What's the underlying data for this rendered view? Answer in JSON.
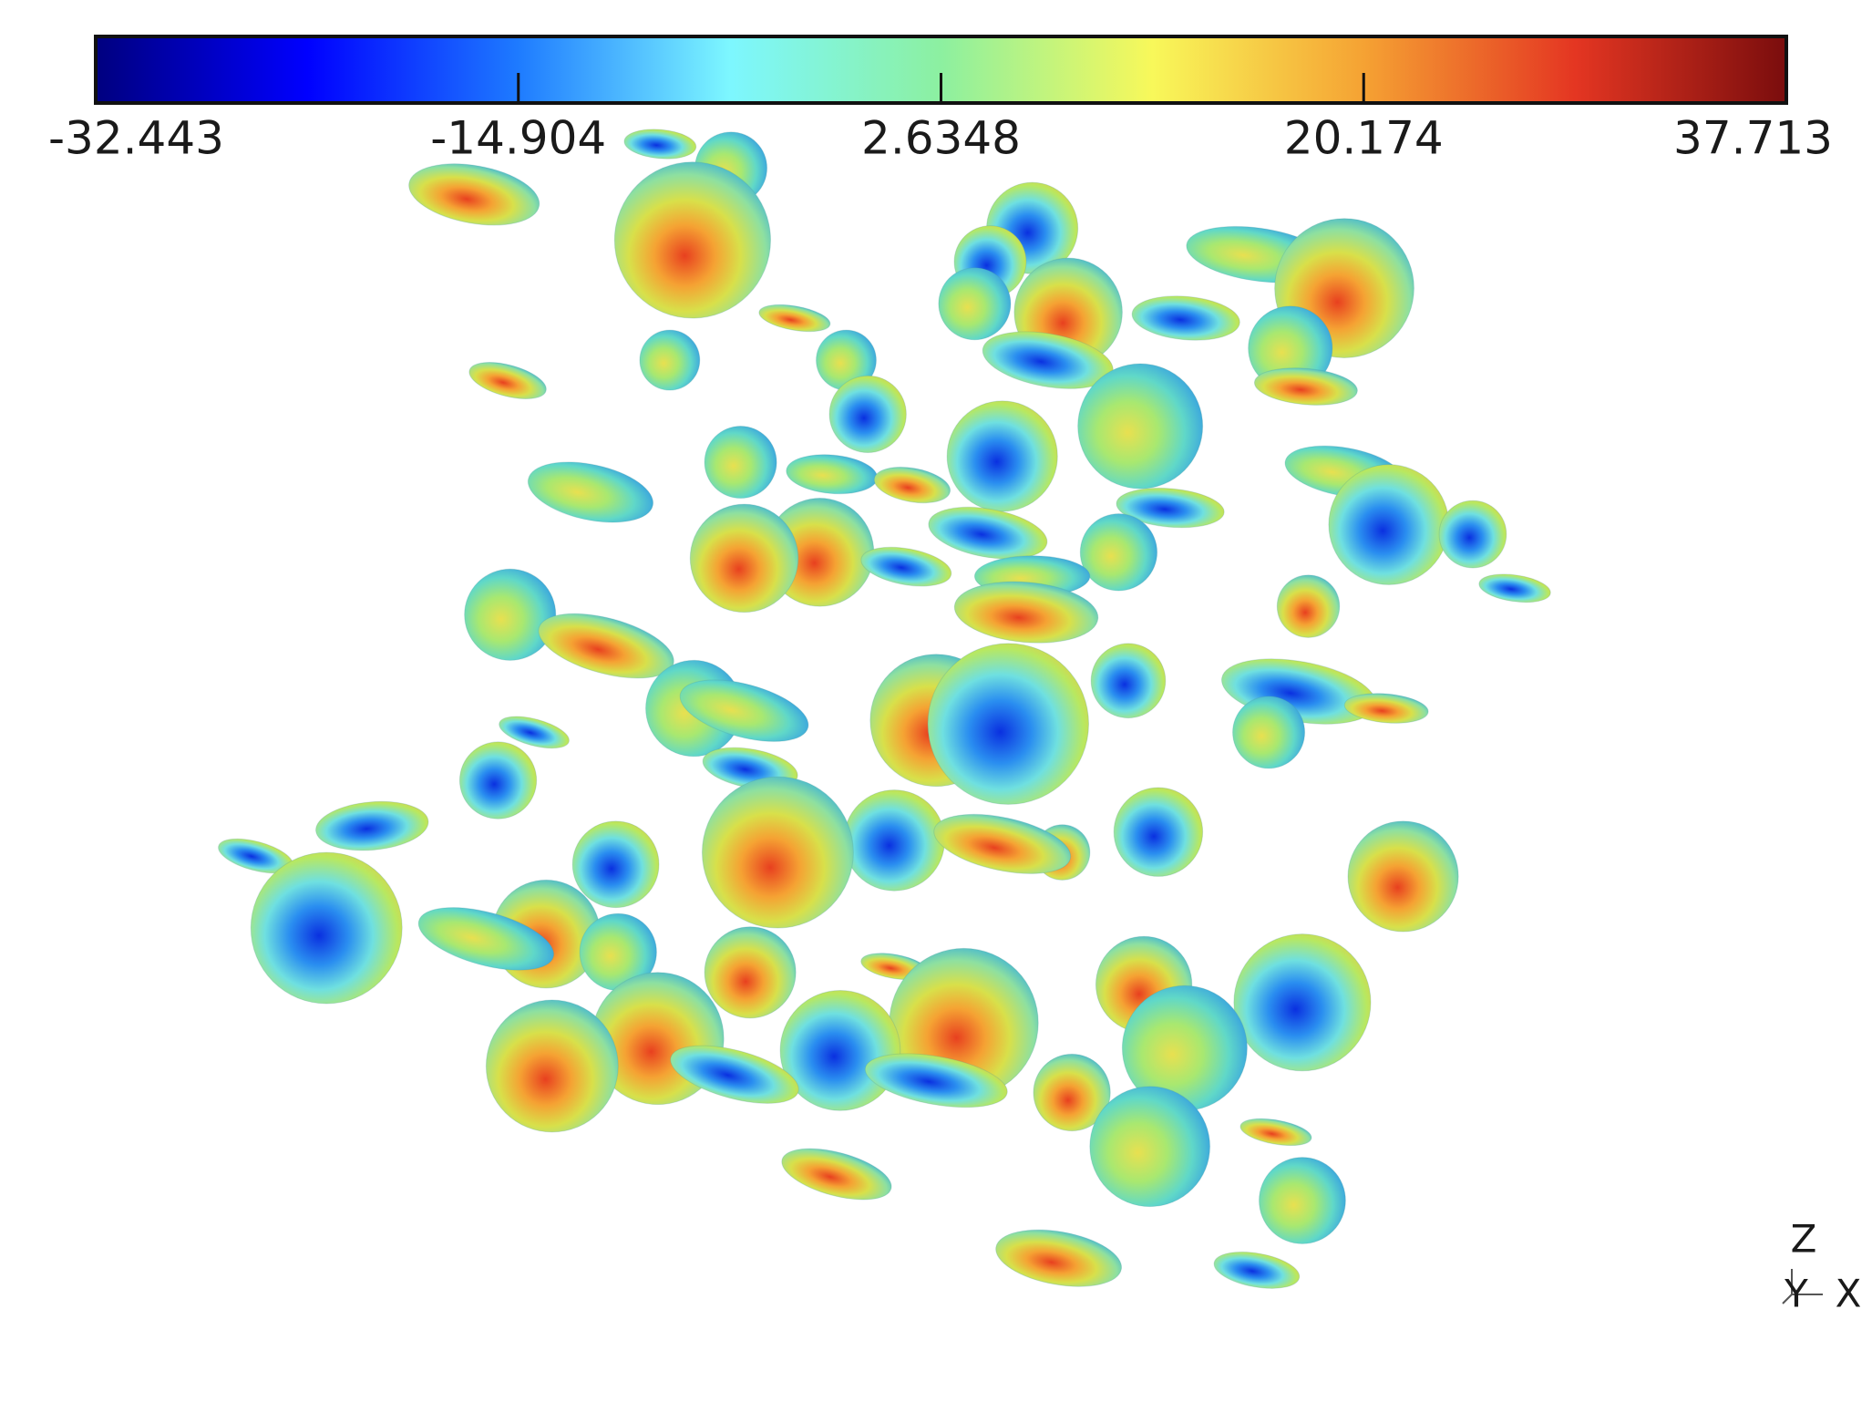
{
  "colorbar": {
    "lim": [
      -32.443,
      37.713
    ],
    "ticks": [
      -32.443,
      -14.904,
      2.6348,
      20.174,
      37.713
    ],
    "colormap": [
      "#00007f",
      "#0000ff",
      "#1e7bff",
      "#7df7ff",
      "#8cf0a0",
      "#f8f85a",
      "#f5a233",
      "#e43622",
      "#7a0d0d"
    ]
  },
  "axes_triad": {
    "labels": [
      "Z",
      "Y",
      "X"
    ]
  }
}
